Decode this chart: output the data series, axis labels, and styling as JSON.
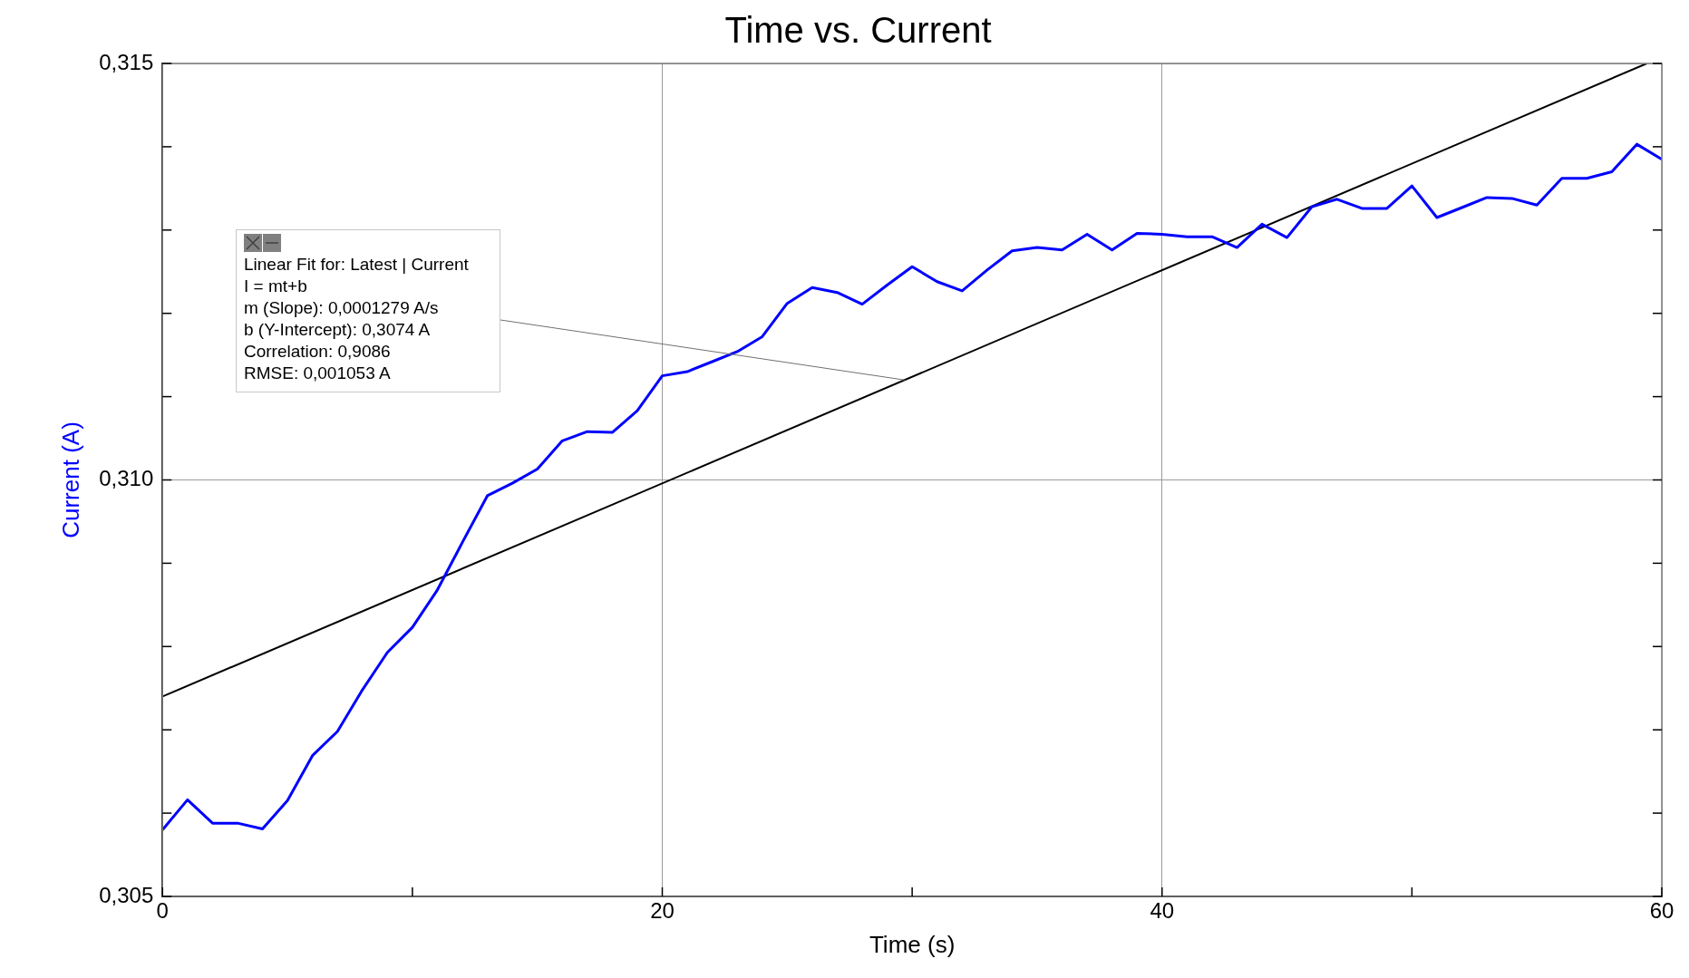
{
  "chart_data": {
    "type": "line",
    "title": "Time vs. Current",
    "xlabel": "Time (s)",
    "ylabel": "Current (A)",
    "xlim": [
      0,
      60
    ],
    "xticks": [
      0,
      {
        "value": 10,
        "label": null
      },
      20,
      {
        "value": 30,
        "label": null
      },
      40,
      {
        "value": 50,
        "label": null
      },
      60
    ],
    "ylim": [
      0.305,
      0.315
    ],
    "yticks": [
      {
        "value": 0.305,
        "label": "0,305"
      },
      {
        "value": 0.306,
        "label": null
      },
      {
        "value": 0.307,
        "label": null
      },
      {
        "value": 0.308,
        "label": null
      },
      {
        "value": 0.309,
        "label": null
      },
      {
        "value": 0.31,
        "label": "0,310"
      },
      {
        "value": 0.311,
        "label": null
      },
      {
        "value": 0.312,
        "label": null
      },
      {
        "value": 0.313,
        "label": null
      },
      {
        "value": 0.314,
        "label": null
      },
      {
        "value": 0.315,
        "label": "0,315"
      }
    ],
    "grid": true,
    "legend": false,
    "marker": "none",
    "line_style": "solid",
    "annotations": [
      "Linear Fit for: Latest | Current",
      "I = mt+b",
      "m (Slope): 0,0001279 A/s",
      "b (Y-Intercept): 0,3074 A",
      "Correlation: 0,9086",
      "RMSE: 0,001053 A"
    ],
    "series": [
      {
        "color": "#0000ff",
        "x": [
          0,
          1,
          2,
          3,
          4,
          5,
          6,
          7,
          8,
          9,
          10,
          11,
          12,
          13,
          14,
          15,
          16,
          17,
          18,
          19,
          20,
          21,
          22,
          23,
          24,
          25,
          26,
          27,
          28,
          29,
          30,
          31,
          32,
          33,
          34,
          35,
          36,
          37,
          38,
          39,
          40,
          41,
          42,
          43,
          44,
          45,
          46,
          47,
          48,
          49,
          50,
          51,
          52,
          53,
          54,
          55,
          56,
          57,
          58,
          59,
          60
        ],
        "values": [
          0.3058,
          0.30616,
          0.30588,
          0.30588,
          0.30581,
          0.30615,
          0.30669,
          0.30698,
          0.30748,
          0.30793,
          0.30823,
          0.30868,
          0.30925,
          0.30981,
          0.30996,
          0.31013,
          0.31047,
          0.31058,
          0.31057,
          0.31083,
          0.31125,
          0.3113,
          0.31142,
          0.31154,
          0.31172,
          0.31212,
          0.31231,
          0.31225,
          0.31211,
          0.31234,
          0.31256,
          0.31238,
          0.31227,
          0.31252,
          0.31275,
          0.31279,
          0.31276,
          0.31295,
          0.31276,
          0.31296,
          0.31295,
          0.31292,
          0.31292,
          0.31279,
          0.31307,
          0.31291,
          0.31328,
          0.31337,
          0.31326,
          0.31326,
          0.31353,
          0.31315,
          0.31327,
          0.31339,
          0.31338,
          0.3133,
          0.31362,
          0.31362,
          0.3137,
          0.31403,
          0.31385
        ]
      },
      {
        "type": "line",
        "color": "#000000",
        "x": [
          0,
          59.4
        ],
        "values": [
          0.3074,
          0.315
        ]
      }
    ]
  }
}
